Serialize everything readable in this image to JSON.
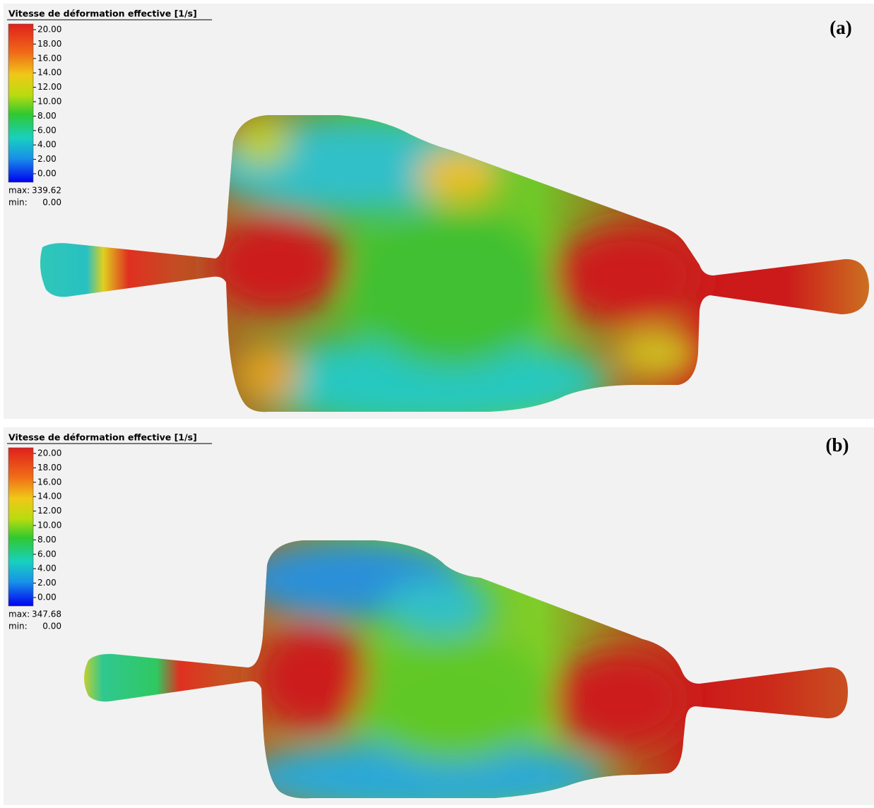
{
  "panels": [
    {
      "title": "Vitesse de déformation effective [1/s]",
      "legend": [
        "20.00",
        "18.00",
        "16.00",
        "14.00",
        "12.00",
        "10.00",
        "8.00",
        "6.00",
        "4.00",
        "2.00",
        "0.00"
      ],
      "max_label": "max:",
      "max_value": "339.62",
      "min_label": "min:",
      "min_value": "0.00",
      "tag": "(a)"
    },
    {
      "title": "Vitesse de déformation effective [1/s]",
      "legend": [
        "20.00",
        "18.00",
        "16.00",
        "14.00",
        "12.00",
        "10.00",
        "8.00",
        "6.00",
        "4.00",
        "2.00",
        "0.00"
      ],
      "max_label": "max:",
      "max_value": "347.68",
      "min_label": "min:",
      "min_value": "0.00",
      "tag": "(b)"
    }
  ]
}
